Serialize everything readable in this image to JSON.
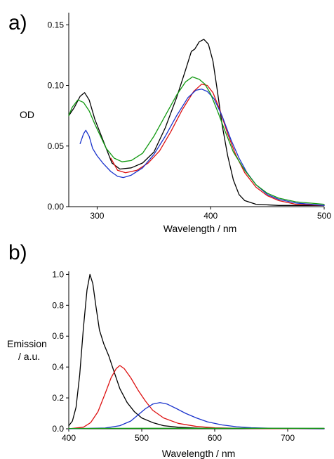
{
  "chart_data": [
    {
      "panel": "a)",
      "type": "line",
      "xlabel": "Wavelength / nm",
      "ylabel": "OD",
      "xlim": [
        275,
        500
      ],
      "ylim": [
        0,
        0.16
      ],
      "xticks": [
        "300",
        "400",
        "500"
      ],
      "yticks": [
        "0.00",
        "0.05",
        "0.10",
        "0.15"
      ],
      "grid": false,
      "series": [
        {
          "color": "#000000",
          "points": [
            [
              275,
              0.075
            ],
            [
              280,
              0.082
            ],
            [
              285,
              0.091
            ],
            [
              289,
              0.094
            ],
            [
              293,
              0.088
            ],
            [
              298,
              0.072
            ],
            [
              303,
              0.06
            ],
            [
              308,
              0.048
            ],
            [
              313,
              0.036
            ],
            [
              320,
              0.031
            ],
            [
              330,
              0.032
            ],
            [
              340,
              0.036
            ],
            [
              350,
              0.045
            ],
            [
              360,
              0.065
            ],
            [
              370,
              0.09
            ],
            [
              378,
              0.113
            ],
            [
              383,
              0.128
            ],
            [
              386,
              0.13
            ],
            [
              390,
              0.136
            ],
            [
              394,
              0.138
            ],
            [
              398,
              0.134
            ],
            [
              402,
              0.12
            ],
            [
              406,
              0.095
            ],
            [
              410,
              0.068
            ],
            [
              415,
              0.042
            ],
            [
              420,
              0.022
            ],
            [
              425,
              0.01
            ],
            [
              430,
              0.005
            ],
            [
              440,
              0.002
            ],
            [
              460,
              0.001
            ],
            [
              500,
              0.001
            ]
          ]
        },
        {
          "color": "#dd1111",
          "points": [
            [
              312,
              0.04
            ],
            [
              318,
              0.03
            ],
            [
              325,
              0.028
            ],
            [
              335,
              0.03
            ],
            [
              345,
              0.036
            ],
            [
              355,
              0.046
            ],
            [
              365,
              0.062
            ],
            [
              375,
              0.08
            ],
            [
              385,
              0.095
            ],
            [
              392,
              0.101
            ],
            [
              397,
              0.1
            ],
            [
              402,
              0.094
            ],
            [
              408,
              0.08
            ],
            [
              415,
              0.06
            ],
            [
              422,
              0.043
            ],
            [
              430,
              0.028
            ],
            [
              440,
              0.016
            ],
            [
              450,
              0.009
            ],
            [
              460,
              0.005
            ],
            [
              475,
              0.002
            ],
            [
              500,
              0.001
            ]
          ]
        },
        {
          "color": "#1a33cc",
          "points": [
            [
              285,
              0.052
            ],
            [
              288,
              0.06
            ],
            [
              290,
              0.063
            ],
            [
              293,
              0.058
            ],
            [
              296,
              0.048
            ],
            [
              300,
              0.042
            ],
            [
              305,
              0.036
            ],
            [
              312,
              0.029
            ],
            [
              318,
              0.025
            ],
            [
              323,
              0.024
            ],
            [
              330,
              0.026
            ],
            [
              340,
              0.032
            ],
            [
              350,
              0.043
            ],
            [
              360,
              0.058
            ],
            [
              370,
              0.075
            ],
            [
              380,
              0.09
            ],
            [
              387,
              0.096
            ],
            [
              392,
              0.097
            ],
            [
              397,
              0.095
            ],
            [
              403,
              0.089
            ],
            [
              410,
              0.075
            ],
            [
              418,
              0.055
            ],
            [
              425,
              0.04
            ],
            [
              432,
              0.028
            ],
            [
              440,
              0.018
            ],
            [
              450,
              0.01
            ],
            [
              460,
              0.006
            ],
            [
              475,
              0.003
            ],
            [
              500,
              0.001
            ]
          ]
        },
        {
          "color": "#119911",
          "points": [
            [
              275,
              0.075
            ],
            [
              278,
              0.082
            ],
            [
              283,
              0.088
            ],
            [
              288,
              0.086
            ],
            [
              293,
              0.079
            ],
            [
              298,
              0.068
            ],
            [
              303,
              0.058
            ],
            [
              308,
              0.048
            ],
            [
              315,
              0.04
            ],
            [
              322,
              0.037
            ],
            [
              330,
              0.038
            ],
            [
              340,
              0.044
            ],
            [
              350,
              0.058
            ],
            [
              360,
              0.075
            ],
            [
              370,
              0.092
            ],
            [
              378,
              0.103
            ],
            [
              384,
              0.107
            ],
            [
              390,
              0.105
            ],
            [
              395,
              0.101
            ],
            [
              400,
              0.093
            ],
            [
              406,
              0.079
            ],
            [
              412,
              0.064
            ],
            [
              420,
              0.045
            ],
            [
              430,
              0.03
            ],
            [
              440,
              0.018
            ],
            [
              450,
              0.011
            ],
            [
              460,
              0.007
            ],
            [
              475,
              0.004
            ],
            [
              500,
              0.002
            ]
          ]
        }
      ]
    },
    {
      "panel": "b)",
      "type": "line",
      "xlabel": "Wavelength / nm",
      "ylabel_lines": [
        "Emission",
        "/ a.u."
      ],
      "xlim": [
        400,
        750
      ],
      "ylim": [
        0,
        1.02
      ],
      "xticks": [
        "400",
        "500",
        "600",
        "700"
      ],
      "yticks": [
        "0.0",
        "0.2",
        "0.4",
        "0.6",
        "0.8",
        "1.0"
      ],
      "grid": false,
      "series": [
        {
          "color": "#000000",
          "points": [
            [
              400,
              0.02
            ],
            [
              405,
              0.05
            ],
            [
              410,
              0.14
            ],
            [
              415,
              0.35
            ],
            [
              420,
              0.65
            ],
            [
              425,
              0.9
            ],
            [
              429,
              1.0
            ],
            [
              433,
              0.94
            ],
            [
              437,
              0.8
            ],
            [
              442,
              0.64
            ],
            [
              448,
              0.55
            ],
            [
              455,
              0.47
            ],
            [
              462,
              0.37
            ],
            [
              470,
              0.26
            ],
            [
              480,
              0.17
            ],
            [
              490,
              0.11
            ],
            [
              500,
              0.07
            ],
            [
              515,
              0.04
            ],
            [
              530,
              0.02
            ],
            [
              550,
              0.01
            ],
            [
              580,
              0.003
            ],
            [
              750,
              0.0
            ]
          ]
        },
        {
          "color": "#dd1111",
          "points": [
            [
              400,
              0.0
            ],
            [
              420,
              0.01
            ],
            [
              430,
              0.04
            ],
            [
              440,
              0.11
            ],
            [
              450,
              0.23
            ],
            [
              458,
              0.33
            ],
            [
              465,
              0.39
            ],
            [
              470,
              0.41
            ],
            [
              476,
              0.39
            ],
            [
              485,
              0.33
            ],
            [
              495,
              0.25
            ],
            [
              505,
              0.18
            ],
            [
              515,
              0.12
            ],
            [
              530,
              0.07
            ],
            [
              550,
              0.035
            ],
            [
              575,
              0.015
            ],
            [
              600,
              0.006
            ],
            [
              650,
              0.002
            ],
            [
              750,
              0.0
            ]
          ]
        },
        {
          "color": "#1a33cc",
          "points": [
            [
              400,
              0.0
            ],
            [
              450,
              0.005
            ],
            [
              470,
              0.02
            ],
            [
              485,
              0.05
            ],
            [
              495,
              0.09
            ],
            [
              505,
              0.13
            ],
            [
              515,
              0.16
            ],
            [
              525,
              0.17
            ],
            [
              535,
              0.16
            ],
            [
              548,
              0.13
            ],
            [
              560,
              0.1
            ],
            [
              575,
              0.07
            ],
            [
              590,
              0.045
            ],
            [
              610,
              0.025
            ],
            [
              630,
              0.013
            ],
            [
              650,
              0.007
            ],
            [
              680,
              0.003
            ],
            [
              750,
              0.001
            ]
          ]
        },
        {
          "color": "#119911",
          "points": [
            [
              400,
              0.002
            ],
            [
              500,
              0.003
            ],
            [
              600,
              0.003
            ],
            [
              700,
              0.003
            ],
            [
              750,
              0.003
            ]
          ]
        }
      ]
    }
  ]
}
